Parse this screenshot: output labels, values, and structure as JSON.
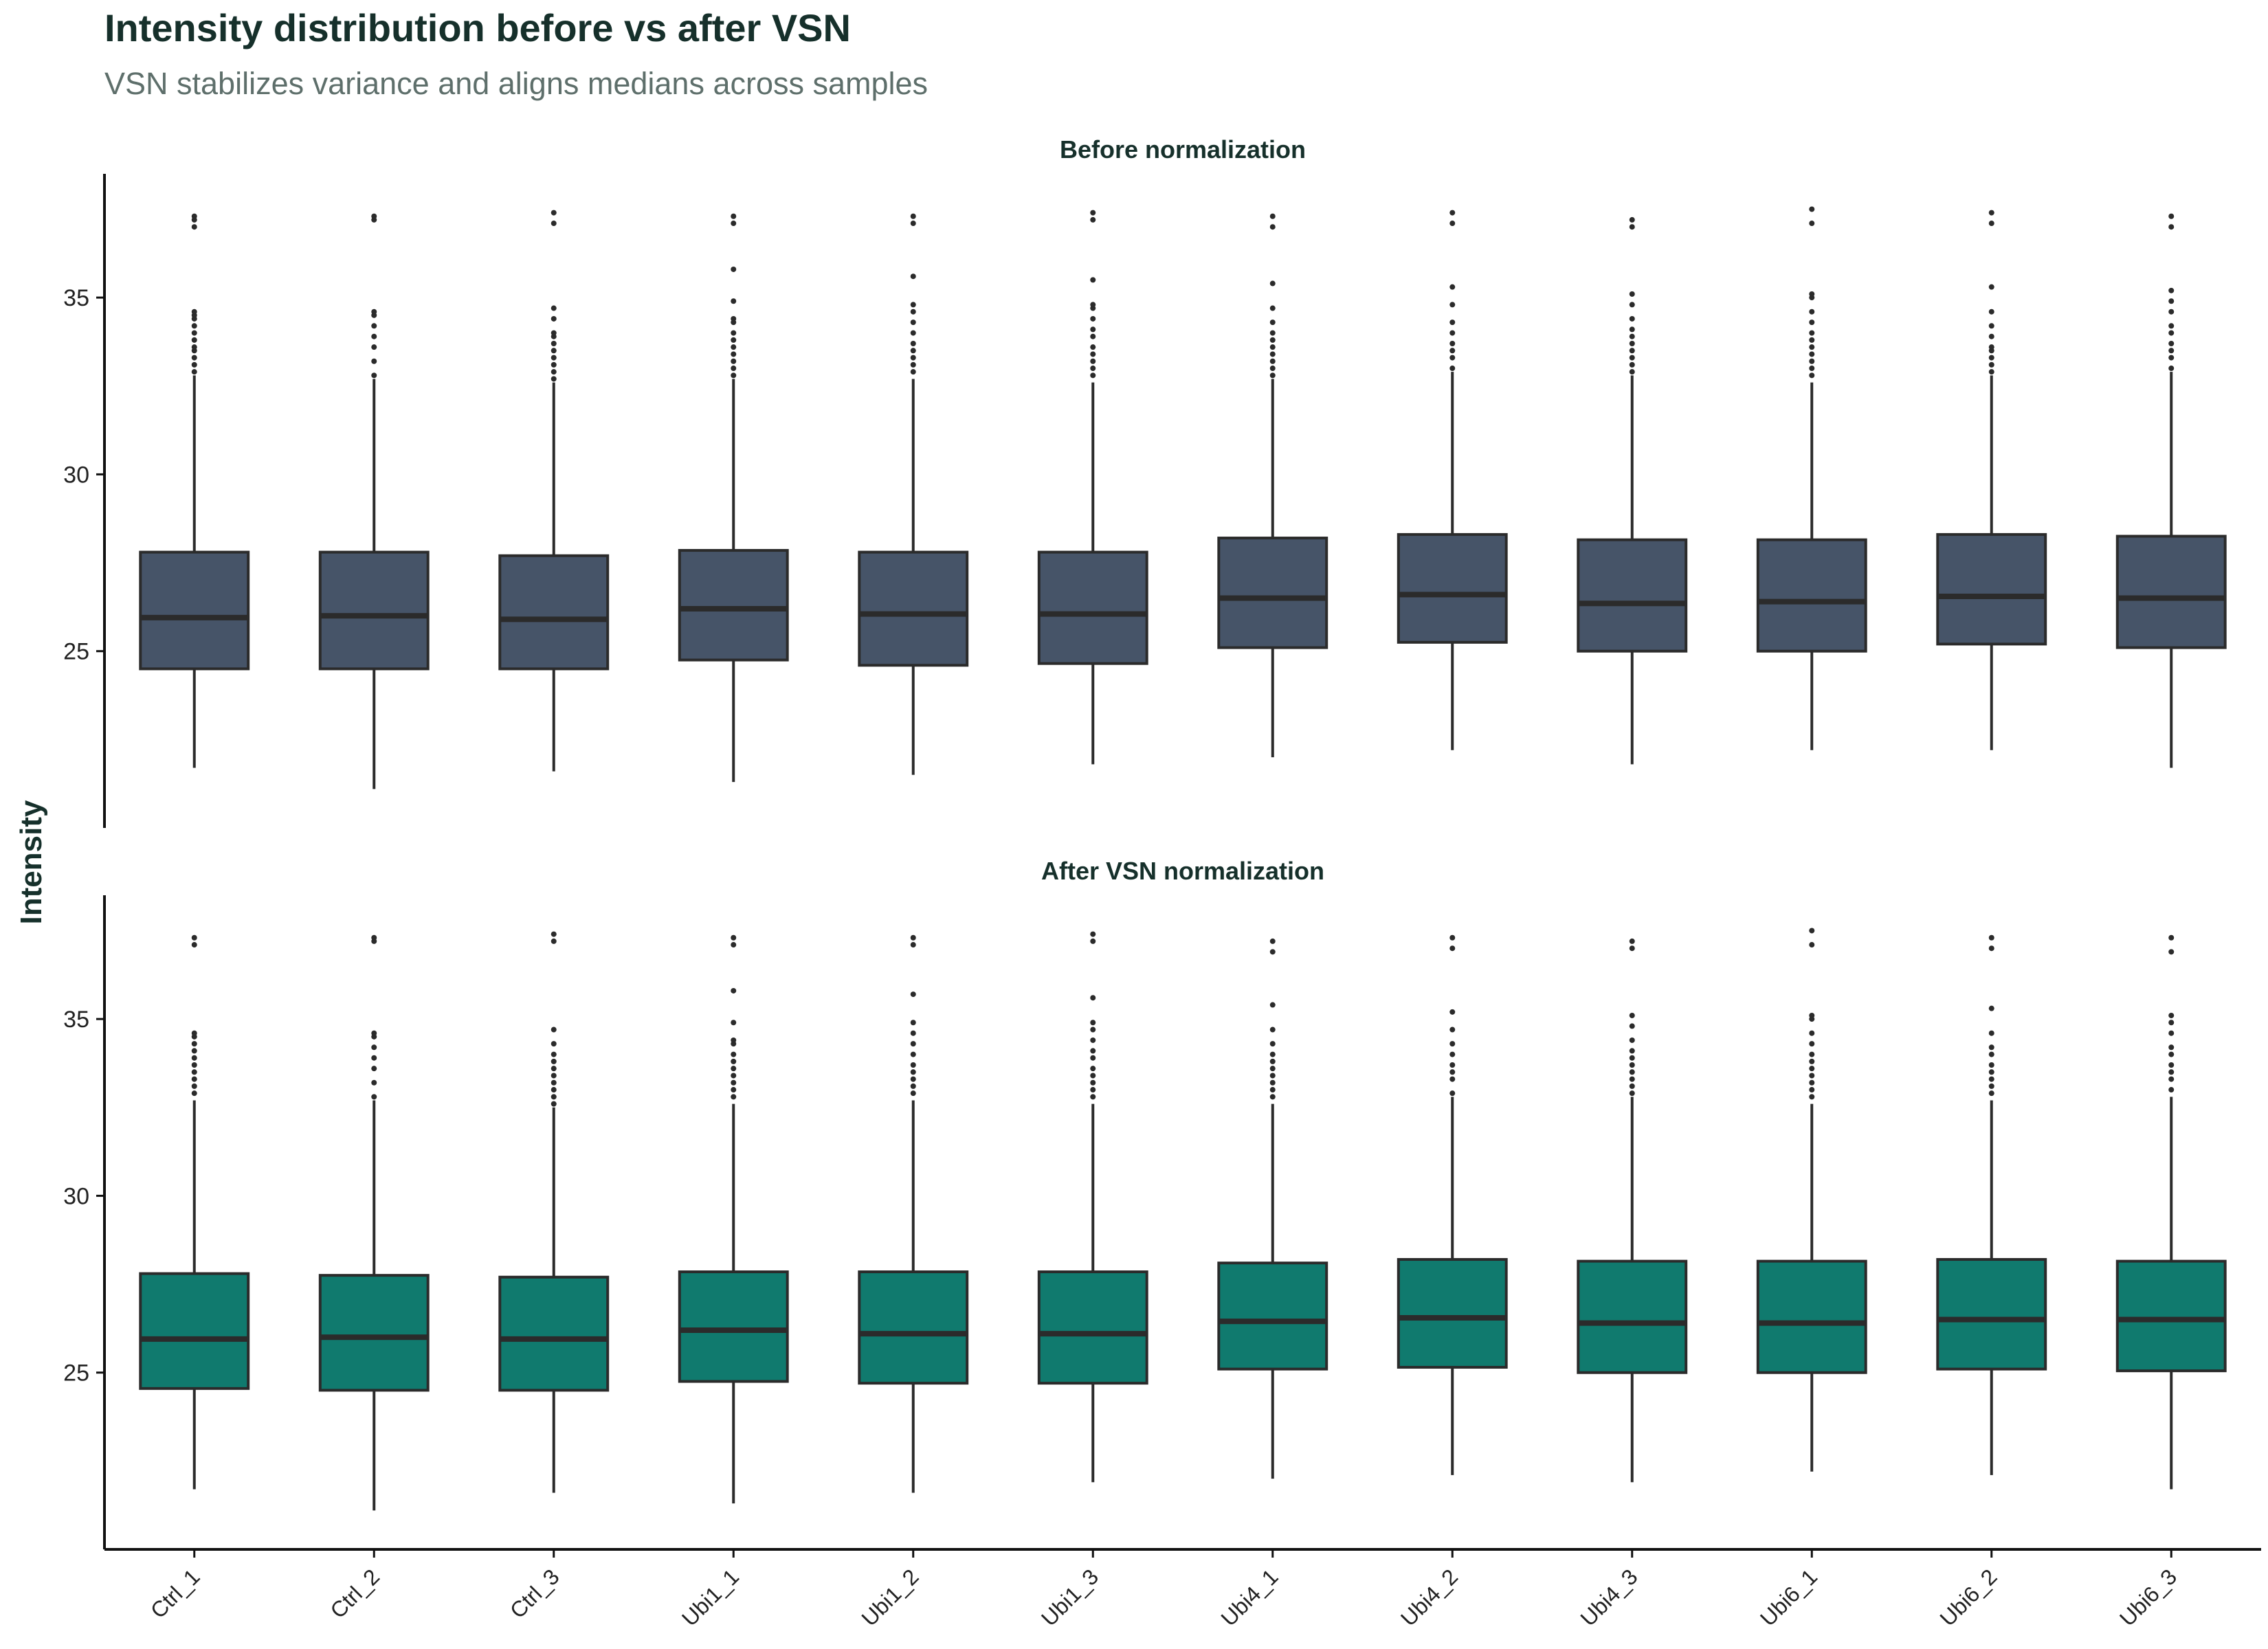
{
  "title": "Intensity distribution before vs after VSN",
  "subtitle": "VSN stabilizes variance and aligns medians across samples",
  "chart_data": {
    "type": "boxplot",
    "title": "Intensity distribution before vs after VSN",
    "subtitle": "VSN stabilizes variance and aligns medians across samples",
    "ylabel": "Intensity",
    "xlabel": "",
    "ylim": [
      20,
      38.5
    ],
    "yticks": [
      25,
      30,
      35
    ],
    "grid": false,
    "legend": "none",
    "categories": [
      "Ctrl_1",
      "Ctrl_2",
      "Ctrl_3",
      "Ubi1_1",
      "Ubi1_2",
      "Ubi1_3",
      "Ubi4_1",
      "Ubi4_2",
      "Ubi4_3",
      "Ubi6_1",
      "Ubi6_2",
      "Ubi6_3"
    ],
    "panels": [
      {
        "name": "Before normalization",
        "color": "#465468",
        "boxes": [
          {
            "min": 21.7,
            "q1": 24.5,
            "median": 25.95,
            "q3": 27.8,
            "max": 32.8,
            "outliers": [
              32.9,
              33.1,
              33.3,
              33.5,
              33.6,
              33.8,
              34.0,
              34.2,
              34.4,
              34.5,
              34.6,
              37.0,
              37.2,
              37.3
            ]
          },
          {
            "min": 21.1,
            "q1": 24.5,
            "median": 26.0,
            "q3": 27.8,
            "max": 32.7,
            "outliers": [
              32.8,
              33.2,
              33.6,
              33.9,
              34.2,
              34.5,
              34.6,
              37.2,
              37.3
            ]
          },
          {
            "min": 21.6,
            "q1": 24.5,
            "median": 25.9,
            "q3": 27.7,
            "max": 32.6,
            "outliers": [
              32.7,
              32.9,
              33.1,
              33.3,
              33.5,
              33.7,
              33.9,
              34.0,
              34.4,
              34.7,
              37.1,
              37.4
            ]
          },
          {
            "min": 21.3,
            "q1": 24.75,
            "median": 26.2,
            "q3": 27.85,
            "max": 32.7,
            "outliers": [
              32.8,
              33.0,
              33.2,
              33.4,
              33.6,
              33.8,
              34.0,
              34.3,
              34.4,
              34.9,
              35.8,
              37.1,
              37.3
            ]
          },
          {
            "min": 21.5,
            "q1": 24.6,
            "median": 26.05,
            "q3": 27.8,
            "max": 32.7,
            "outliers": [
              32.9,
              33.1,
              33.3,
              33.5,
              33.7,
              34.0,
              34.3,
              34.6,
              34.8,
              35.6,
              37.1,
              37.3
            ]
          },
          {
            "min": 21.8,
            "q1": 24.65,
            "median": 26.05,
            "q3": 27.8,
            "max": 32.6,
            "outliers": [
              32.8,
              33.0,
              33.2,
              33.4,
              33.6,
              33.9,
              34.1,
              34.4,
              34.7,
              34.8,
              35.5,
              37.2,
              37.4
            ]
          },
          {
            "min": 22.0,
            "q1": 25.1,
            "median": 26.5,
            "q3": 28.2,
            "max": 32.7,
            "outliers": [
              32.8,
              33.0,
              33.2,
              33.4,
              33.6,
              33.8,
              34.0,
              34.3,
              34.7,
              35.4,
              37.0,
              37.3
            ]
          },
          {
            "min": 22.2,
            "q1": 25.25,
            "median": 26.6,
            "q3": 28.3,
            "max": 32.9,
            "outliers": [
              33.0,
              33.3,
              33.5,
              33.7,
              34.0,
              34.3,
              34.8,
              35.3,
              37.1,
              37.4
            ]
          },
          {
            "min": 21.8,
            "q1": 25.0,
            "median": 26.35,
            "q3": 28.15,
            "max": 32.8,
            "outliers": [
              32.9,
              33.1,
              33.3,
              33.5,
              33.7,
              33.9,
              34.1,
              34.4,
              34.8,
              35.1,
              37.0,
              37.2
            ]
          },
          {
            "min": 22.2,
            "q1": 25.0,
            "median": 26.4,
            "q3": 28.15,
            "max": 32.6,
            "outliers": [
              32.8,
              33.0,
              33.2,
              33.4,
              33.6,
              33.8,
              34.0,
              34.3,
              34.6,
              35.0,
              35.1,
              37.1,
              37.5
            ]
          },
          {
            "min": 22.2,
            "q1": 25.2,
            "median": 26.55,
            "q3": 28.3,
            "max": 32.8,
            "outliers": [
              32.9,
              33.1,
              33.3,
              33.5,
              33.6,
              33.9,
              34.2,
              34.6,
              35.3,
              37.1,
              37.4
            ]
          },
          {
            "min": 21.7,
            "q1": 25.1,
            "median": 26.5,
            "q3": 28.25,
            "max": 32.9,
            "outliers": [
              33.0,
              33.3,
              33.5,
              33.7,
              34.0,
              34.2,
              34.6,
              34.9,
              35.2,
              37.0,
              37.3
            ]
          }
        ]
      },
      {
        "name": "After VSN normalization",
        "color": "#107a6e",
        "boxes": [
          {
            "min": 21.7,
            "q1": 24.55,
            "median": 25.95,
            "q3": 27.8,
            "max": 32.7,
            "outliers": [
              32.9,
              33.1,
              33.3,
              33.5,
              33.7,
              33.9,
              34.1,
              34.3,
              34.5,
              34.6,
              37.1,
              37.3
            ]
          },
          {
            "min": 21.1,
            "q1": 24.5,
            "median": 26.0,
            "q3": 27.75,
            "max": 32.7,
            "outliers": [
              32.8,
              33.2,
              33.6,
              33.9,
              34.2,
              34.5,
              34.6,
              37.2,
              37.3
            ]
          },
          {
            "min": 21.6,
            "q1": 24.5,
            "median": 25.95,
            "q3": 27.7,
            "max": 32.5,
            "outliers": [
              32.6,
              32.8,
              33.0,
              33.2,
              33.4,
              33.6,
              33.8,
              34.0,
              34.3,
              34.7,
              37.2,
              37.4
            ]
          },
          {
            "min": 21.3,
            "q1": 24.75,
            "median": 26.2,
            "q3": 27.85,
            "max": 32.6,
            "outliers": [
              32.8,
              33.0,
              33.2,
              33.4,
              33.6,
              33.8,
              34.0,
              34.3,
              34.4,
              34.9,
              35.8,
              37.1,
              37.3
            ]
          },
          {
            "min": 21.6,
            "q1": 24.7,
            "median": 26.1,
            "q3": 27.85,
            "max": 32.7,
            "outliers": [
              32.9,
              33.1,
              33.3,
              33.5,
              33.7,
              34.0,
              34.3,
              34.6,
              34.9,
              35.7,
              37.1,
              37.3
            ]
          },
          {
            "min": 21.9,
            "q1": 24.7,
            "median": 26.1,
            "q3": 27.85,
            "max": 32.6,
            "outliers": [
              32.8,
              33.0,
              33.2,
              33.4,
              33.6,
              33.9,
              34.1,
              34.4,
              34.7,
              34.9,
              35.6,
              37.2,
              37.4
            ]
          },
          {
            "min": 22.0,
            "q1": 25.1,
            "median": 26.45,
            "q3": 28.1,
            "max": 32.6,
            "outliers": [
              32.8,
              33.0,
              33.2,
              33.4,
              33.6,
              33.8,
              34.0,
              34.3,
              34.7,
              35.4,
              36.9,
              37.2
            ]
          },
          {
            "min": 22.1,
            "q1": 25.15,
            "median": 26.55,
            "q3": 28.2,
            "max": 32.8,
            "outliers": [
              32.9,
              33.3,
              33.5,
              33.7,
              34.0,
              34.3,
              34.7,
              35.2,
              37.0,
              37.3
            ]
          },
          {
            "min": 21.9,
            "q1": 25.0,
            "median": 26.4,
            "q3": 28.15,
            "max": 32.8,
            "outliers": [
              32.9,
              33.1,
              33.3,
              33.5,
              33.7,
              33.9,
              34.1,
              34.4,
              34.8,
              35.1,
              37.0,
              37.2
            ]
          },
          {
            "min": 22.2,
            "q1": 25.0,
            "median": 26.4,
            "q3": 28.15,
            "max": 32.6,
            "outliers": [
              32.8,
              33.0,
              33.2,
              33.4,
              33.6,
              33.8,
              34.0,
              34.3,
              34.6,
              35.0,
              35.1,
              37.1,
              37.5
            ]
          },
          {
            "min": 22.1,
            "q1": 25.1,
            "median": 26.5,
            "q3": 28.2,
            "max": 32.7,
            "outliers": [
              32.9,
              33.1,
              33.3,
              33.5,
              33.7,
              34.0,
              34.2,
              34.6,
              35.3,
              37.0,
              37.3
            ]
          },
          {
            "min": 21.7,
            "q1": 25.05,
            "median": 26.5,
            "q3": 28.15,
            "max": 32.8,
            "outliers": [
              33.0,
              33.3,
              33.5,
              33.7,
              34.0,
              34.2,
              34.6,
              34.9,
              35.1,
              36.9,
              37.3
            ]
          }
        ]
      }
    ]
  }
}
